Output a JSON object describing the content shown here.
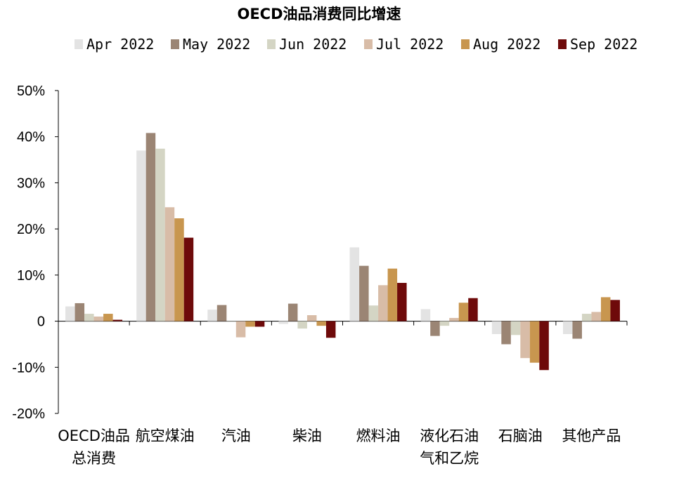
{
  "chart_data": {
    "type": "bar",
    "title": "OECD油品消费同比增速",
    "xlabel": "",
    "ylabel": "",
    "ylim": [
      -20,
      50
    ],
    "yticks": [
      50,
      40,
      30,
      20,
      10,
      0,
      -10,
      -20
    ],
    "ytick_labels": [
      "50%",
      "40%",
      "30%",
      "20%",
      "10%",
      "0",
      "-10%",
      "-20%"
    ],
    "legend_position": "top",
    "categories": [
      [
        "OECD油品",
        "总消费"
      ],
      [
        "航空煤油"
      ],
      [
        "汽油"
      ],
      [
        "柴油"
      ],
      [
        "燃料油"
      ],
      [
        "液化石油",
        "气和乙烷"
      ],
      [
        "石脑油"
      ],
      [
        "其他产品"
      ]
    ],
    "series": [
      {
        "name": "Apr 2022",
        "color": "#e3e3e3",
        "values": [
          3.2,
          37.0,
          2.5,
          -0.6,
          16.0,
          2.6,
          -2.8,
          -2.8
        ]
      },
      {
        "name": "May 2022",
        "color": "#9b8574",
        "values": [
          3.9,
          40.8,
          3.5,
          3.8,
          12.0,
          -3.2,
          -5.0,
          -3.8
        ]
      },
      {
        "name": "Jun 2022",
        "color": "#d4d5c4",
        "values": [
          1.6,
          37.4,
          0.0,
          -1.6,
          3.4,
          -1.0,
          -3.0,
          1.6
        ]
      },
      {
        "name": "Jul 2022",
        "color": "#d8bca7",
        "values": [
          1.0,
          24.7,
          -3.5,
          1.3,
          7.8,
          0.7,
          -8.0,
          2.0
        ]
      },
      {
        "name": "Aug 2022",
        "color": "#c8964f",
        "values": [
          1.6,
          22.3,
          -1.2,
          -1.0,
          11.4,
          4.0,
          -9.0,
          5.2
        ]
      },
      {
        "name": "Sep 2022",
        "color": "#6e0a0a",
        "values": [
          0.3,
          18.1,
          -1.2,
          -3.6,
          8.3,
          5.0,
          -10.6,
          4.6
        ]
      }
    ]
  }
}
